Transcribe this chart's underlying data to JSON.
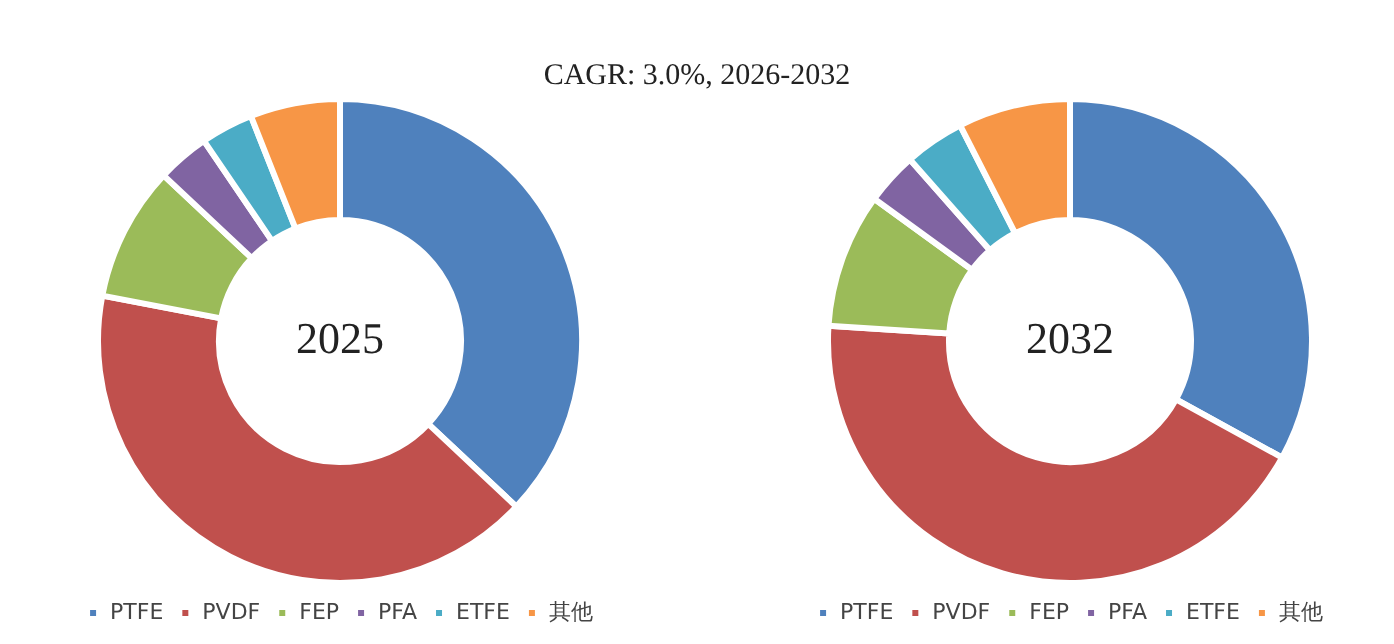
{
  "chart_data": [
    {
      "type": "donut",
      "title": "2025",
      "annotations": [
        "CAGR:  3.0%, 2026-2032"
      ],
      "categories": [
        "PTFE",
        "PVDF",
        "FEP",
        "PFA",
        "ETFE",
        "其他"
      ],
      "values": [
        37,
        41,
        9,
        3.5,
        3.5,
        6
      ],
      "colors": [
        "#4f81bd",
        "#c0504d",
        "#9bbb59",
        "#8064a2",
        "#4bacc6",
        "#f79646"
      ],
      "legend": "bottom"
    },
    {
      "type": "donut",
      "title": "2032",
      "categories": [
        "PTFE",
        "PVDF",
        "FEP",
        "PFA",
        "ETFE",
        "其他"
      ],
      "values": [
        33,
        43,
        9,
        3.5,
        4,
        7.5
      ],
      "colors": [
        "#4f81bd",
        "#c0504d",
        "#9bbb59",
        "#8064a2",
        "#4bacc6",
        "#f79646"
      ],
      "legend": "bottom"
    }
  ]
}
